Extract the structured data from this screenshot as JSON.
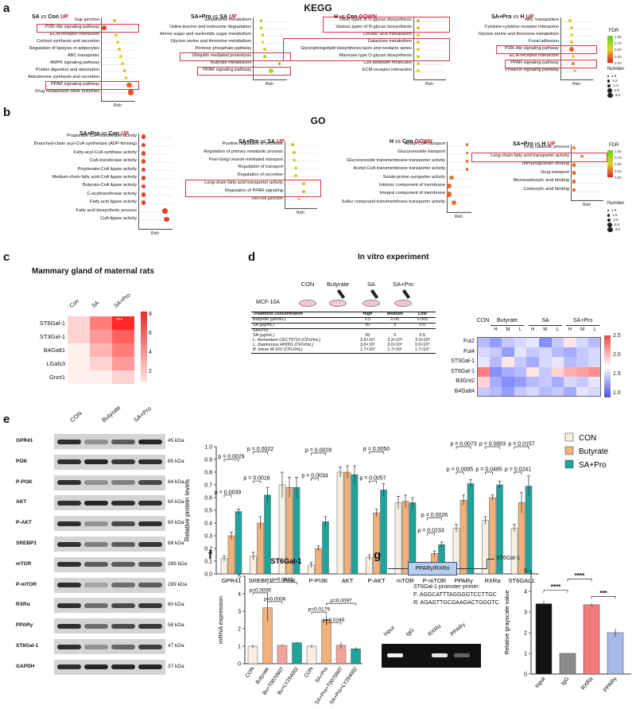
{
  "panels": {
    "a": {
      "letter": "a",
      "title": "KEGG",
      "rich_label": "Rich",
      "legend": {
        "fdr_label": "FDR",
        "fdr_ticks": [
          "1.00",
          "0.75",
          "0.50",
          "0.25",
          "0.00"
        ],
        "number_label": "Number",
        "number_ticks": [
          "1.0",
          "1.5",
          "2.0",
          "2.5",
          "3.0"
        ]
      },
      "plots": [
        {
          "title_a": "SA",
          "vs": "vs",
          "title_b": "Con",
          "dir": "UP",
          "terms": [
            "Gap junction",
            "PI3K-Akt signaling pathway",
            "ECM-receptor interaction",
            "Cortisol synthesis and secretion",
            "Regulation of lipolysis in adipocytes",
            "ABC transporter",
            "AMPK signaling pathway",
            "Protein digestion and absorption",
            "Aldosterone synthesis and secretion",
            "PPAR signaling pathway",
            "Drug metabolism-other enzymes"
          ]
        },
        {
          "title_a": "SA+Pro",
          "vs": "vs",
          "title_b": "SA",
          "dir": "UP",
          "terms": [
            "Glutathione metabolism",
            "Valine,leucine and isoleucine degradation",
            "Amino sugar and nucleotide sugar metabolism",
            "Glycine,serine and threonine metabolism",
            "Pentose phosphate pathway",
            "Ubiquitin mediated proteolysis",
            "Butyrate metabolism",
            "PPAR signaling pathway"
          ]
        },
        {
          "title_a": "H",
          "vs": "vs",
          "title_b": "Con",
          "dir": "DOWN",
          "terms": [
            "Other types of O-glycan biosynthesis",
            "Various types of N-glycan biosynthesis",
            "Linoleic acid metabolism",
            "Galactose metabolism",
            "Glycosphingolipid biosynthesis-lacto and neolacto series",
            "Mannose type O-glycan biosynthesis",
            "Cell adhesion molecules",
            "ECM-receptor interaction"
          ]
        },
        {
          "title_a": "SA+Pro",
          "vs": "vs",
          "title_b": "H",
          "dir": "UP",
          "terms": [
            "ABC transporters",
            "Cytokine-cytokine receptor interaction",
            "Glycine,serine and threonine metabolism",
            "Focal adhesion",
            "PI3K-Akt signaling pathway",
            "ECM-receptor interaction",
            "PPAR signaling pathway",
            "Prolactin signaling pathway"
          ]
        }
      ]
    },
    "b": {
      "letter": "b",
      "title": "GO",
      "rich_label": "Rich",
      "legend": {
        "fdr_label": "FDR",
        "fdr_ticks": [
          "1.00",
          "0.75",
          "0.50",
          "0.25",
          "0.00"
        ],
        "number_label": "Number",
        "number_ticks": [
          "1.0",
          "1.5",
          "2.0",
          "2.5",
          "3.0"
        ]
      },
      "plots": [
        {
          "title_a": "SA+Pro",
          "vs": "vs",
          "title_b": "Con",
          "dir": "UP",
          "terms": [
            "Propionate CoA-transferase activity",
            "Branched-chain acyl-CoA synthetase (ADP-forming)",
            "Fatty-acyl-CoA synthase activity",
            "CoA-transferase activity",
            "Propionate-CoA ligase activity",
            "Medium-chain fatty acid-CoA ligase activity",
            "Butyrate-CoA ligase activity",
            "C-acyltransferase activity",
            "Fatty acid ligase activity",
            "Fatty acid biosynthetic process",
            "CoA-ligase activity"
          ]
        },
        {
          "title_a": "SA+Pro",
          "vs": "vs",
          "title_b": "SA",
          "dir": "UP",
          "terms": [
            "Positive regulation of secretion",
            "Regulation of primary metabolic process",
            "Post-Golgi vesicle-mediated transport",
            "Regulation of transport",
            "Regulation of secretion",
            "Long-chain fatty acid transporter activity",
            "Regulation of PPAR signaling",
            "cell-cell junction"
          ]
        },
        {
          "title_a": "H",
          "vs": "vs",
          "title_b": "Con",
          "dir": "DOWN",
          "terms": [
            "Acetyl-CoA transport",
            "Glucuronoside transport",
            "Glucuronoside transmembrane transporter activity",
            "Acetyl-CoA transmembrane transporter activity",
            "Solute:proton symporter activity",
            "Intrinsic component of membrane",
            "Integral component of membrane",
            "Sulfur compound transmembrane transporter activity"
          ]
        },
        {
          "title_a": "SA+Pro",
          "vs": "vs",
          "title_b": "H",
          "dir": "UP",
          "terms": [
            "Drug catabolic process",
            "Long-chain fatty acid transporter activity",
            "Immunoglobulin binding",
            "Drug transport",
            "Monocarboxylic acid binding",
            "Carboxylic acid binding"
          ]
        }
      ]
    },
    "c": {
      "letter": "c",
      "title": "Mammary gland of maternal rats",
      "cols": [
        "Con",
        "SA",
        "SA+Pro"
      ],
      "rows": [
        "ST6Gal-1",
        "ST3Gal-1",
        "B4Galt1",
        "LGals3",
        "Gnct1"
      ],
      "star": "***",
      "scale_ticks": [
        "8",
        "6",
        "4",
        "2"
      ]
    },
    "d": {
      "letter": "d",
      "title": "In vitro experiment",
      "cell_line": "MCF-10A",
      "groups": [
        "CON",
        "Butyrate",
        "SA",
        "SA+Pro"
      ],
      "table": {
        "header": [
          "Treatment concentration",
          "High",
          "Medium",
          "Low"
        ],
        "rows": [
          [
            "Butyrate (μmol/L)",
            "0.5",
            "0.05",
            "0.005"
          ],
          [
            "SA (μg/mL)",
            "50",
            "5",
            "0.5"
          ],
          [
            "SA+Pro:",
            "",
            "",
            ""
          ],
          [
            "SA (μg/mL)",
            "50",
            "5",
            "0.5"
          ],
          [
            "L. fermentum CECT5716 (CFU/mL)",
            "3.3×10⁵",
            "3.3×10⁴",
            "3.3×10³"
          ],
          [
            "L. rhamnosus HN001 (CFU/mL)",
            "3.0×10⁵",
            "3.0×10⁵",
            "3.0×10⁴"
          ],
          [
            "B. breve M-16V (CFU/mL)",
            "1.7×10⁶",
            "1.7×10⁵",
            "1.7×10⁴"
          ]
        ]
      },
      "heat_cols_top": [
        "CON",
        "Butyrate",
        "SA",
        "SA+Pro"
      ],
      "heat_sub": [
        "H",
        "M",
        "L",
        "H",
        "M",
        "L",
        "H",
        "M",
        "L"
      ],
      "heat_rows": [
        "Fut2",
        "Fut4",
        "ST3Gal-1",
        "ST6Gal-1",
        "B3Gnt2",
        "B4Galt4"
      ],
      "scale_ticks": [
        "2.5",
        "2.0",
        "1.5",
        "1.0"
      ]
    },
    "e": {
      "letter": "e",
      "lanes": [
        "CON",
        "Butyrate",
        "SA+Pro"
      ],
      "blots": [
        {
          "name": "GPR41",
          "kda": "45 kDa"
        },
        {
          "name": "PI3K",
          "kda": "85 kDa"
        },
        {
          "name": "P-PI3K",
          "kda": "84 kDa"
        },
        {
          "name": "AKT",
          "kda": "60 kDa"
        },
        {
          "name": "P-AKT",
          "kda": "60 kDa"
        },
        {
          "name": "SREBP1",
          "kda": "68 kDa"
        },
        {
          "name": "mTOR",
          "kda": "289 kDa"
        },
        {
          "name": "P-mTOR",
          "kda": "289 kDa"
        },
        {
          "name": "RXRα",
          "kda": "60 kDa"
        },
        {
          "name": "PPARγ",
          "kda": "58 kDa"
        },
        {
          "name": "ST6Gal-1",
          "kda": "47 kDa"
        },
        {
          "name": "GAPDH",
          "kda": "37 kDa"
        }
      ]
    },
    "f": {
      "letter": "f"
    },
    "g": {
      "letter": "g",
      "construct": "PPARγ/RXRα",
      "gene": "ST6Gal-1",
      "primer_title": "ST6Gal-1 promoter primer:",
      "primer_f": "F:  AGGCATTTAGGGGTCCTTGC",
      "primer_r": "R:  AGAGTTGCGAAGACTGGGTC",
      "gel_lanes": [
        "Input",
        "IgG",
        "RXRα",
        "PPARγ"
      ]
    }
  },
  "chart_data": [
    {
      "type": "bar",
      "panel": "e",
      "ylabel": "Relative protein levels",
      "ylim": [
        0,
        1.0
      ],
      "yticks": [
        0.0,
        0.1,
        0.2,
        0.3,
        0.4,
        0.5,
        0.6,
        0.7,
        0.8,
        0.9,
        1.0
      ],
      "categories": [
        "GPR41",
        "SREBP1",
        "PI3K",
        "P-PI3K",
        "AKT",
        "P-AKT",
        "mTOR",
        "P-mTOR",
        "PPARγ",
        "RXRa",
        "ST6GAL1"
      ],
      "series": [
        {
          "name": "CON",
          "color": "#f8efe0",
          "values": [
            0.12,
            0.14,
            0.7,
            0.07,
            0.8,
            0.13,
            0.56,
            0.04,
            0.36,
            0.42,
            0.36
          ]
        },
        {
          "name": "Butyrate",
          "color": "#f0b17a",
          "values": [
            0.3,
            0.4,
            0.68,
            0.2,
            0.8,
            0.48,
            0.57,
            0.16,
            0.58,
            0.6,
            0.56
          ]
        },
        {
          "name": "SA+Pro",
          "color": "#1fa39a",
          "values": [
            0.49,
            0.62,
            0.68,
            0.41,
            0.78,
            0.66,
            0.56,
            0.23,
            0.71,
            0.7,
            0.69
          ]
        }
      ],
      "errors": [
        [
          0.02,
          0.03,
          0.1,
          0.02,
          0.04,
          0.02,
          0.05,
          0.005,
          0.03,
          0.03,
          0.03
        ],
        [
          0.03,
          0.05,
          0.08,
          0.02,
          0.05,
          0.03,
          0.05,
          0.02,
          0.04,
          0.02,
          0.08
        ],
        [
          0.02,
          0.06,
          0.08,
          0.04,
          0.07,
          0.05,
          0.04,
          0.02,
          0.03,
          0.03,
          0.08
        ]
      ],
      "annotations": [
        {
          "text": "p = 0.0029",
          "cat": 0,
          "from": 0,
          "to": 2,
          "level": 0.9
        },
        {
          "text": "p = 0.0039",
          "cat": 0,
          "from": 0,
          "to": 1,
          "level": 0.62
        },
        {
          "text": "p = 0.0022",
          "cat": 1,
          "from": 0,
          "to": 2,
          "level": 0.96
        },
        {
          "text": "p = 0.0016",
          "cat": 1,
          "from": 0,
          "to": 1,
          "level": 0.73
        },
        {
          "text": "p = 0.0028",
          "cat": 3,
          "from": 0,
          "to": 2,
          "level": 0.95
        },
        {
          "text": "p = 0.0034",
          "cat": 3,
          "from": 0,
          "to": 1,
          "level": 0.75
        },
        {
          "text": "p = 0.0050",
          "cat": 5,
          "from": 0,
          "to": 2,
          "level": 0.96
        },
        {
          "text": "p = 0.0057",
          "cat": 5,
          "from": 0,
          "to": 1,
          "level": 0.73
        },
        {
          "text": "p = 0.0026",
          "cat": 7,
          "from": 0,
          "to": 2,
          "level": 0.44
        },
        {
          "text": "p = 0.0233",
          "cat": 7,
          "from": 0,
          "to": 1,
          "level": 0.32
        },
        {
          "text": "p = 0.0073",
          "cat": 8,
          "from": 0,
          "to": 2,
          "level": 1.0
        },
        {
          "text": "p = 0.0095",
          "cat": 8,
          "from": 0,
          "to": 1,
          "level": 0.8
        },
        {
          "text": "p = 0.0003",
          "cat": 9,
          "from": 0,
          "to": 2,
          "level": 1.0
        },
        {
          "text": "p = 0.0485",
          "cat": 9,
          "from": 0,
          "to": 1,
          "level": 0.8
        },
        {
          "text": "p = 0.0157",
          "cat": 10,
          "from": 0,
          "to": 2,
          "level": 1.0
        },
        {
          "text": "p = 0.0241",
          "cat": 10,
          "from": 0,
          "to": 1,
          "level": 0.8
        }
      ]
    },
    {
      "type": "bar",
      "panel": "f",
      "title": "ST6Gal-1",
      "ylabel": "mRNA expression",
      "ylim": [
        0,
        5
      ],
      "yticks": [
        0,
        1,
        2,
        3,
        4,
        5
      ],
      "categories": [
        "CON",
        "Butyrate",
        "Bu+T0070907",
        "Bu+LY294002",
        "CON",
        "SA+Pro",
        "SA+Pro+T0070907",
        "SA+Pro+LY294002"
      ],
      "values": [
        1.0,
        3.2,
        1.05,
        1.2,
        1.0,
        2.5,
        1.05,
        0.85
      ],
      "errors": [
        0.1,
        0.8,
        0.05,
        0.05,
        0.1,
        0.3,
        0.2,
        0.1
      ],
      "colors": [
        "#f8efe0",
        "#f0b17a",
        "#f3a39b",
        "#1fa39a",
        "#f8efe0",
        "#f0b17a",
        "#f3a39b",
        "#1fa39a"
      ],
      "annotations": [
        {
          "text": "p=0.0012",
          "from": 1,
          "to": 3,
          "level": 4.65
        },
        {
          "text": "p=0.0005",
          "from": 0,
          "to": 1,
          "level": 4.05
        },
        {
          "text": "p=0.0006",
          "from": 1,
          "to": 2,
          "level": 3.55
        },
        {
          "text": "p=0.0097",
          "from": 5,
          "to": 7,
          "level": 3.45
        },
        {
          "text": "p=0.0179",
          "from": 4,
          "to": 5,
          "level": 2.95
        },
        {
          "text": "p=0.0245",
          "from": 5,
          "to": 6,
          "level": 2.35
        }
      ]
    },
    {
      "type": "bar",
      "panel": "g",
      "ylabel": "Relative grayscale value",
      "ylim": [
        0,
        5
      ],
      "yticks": [
        0,
        1,
        2,
        3,
        4,
        5
      ],
      "categories": [
        "Input",
        "IgG",
        "RXRα",
        "PPARγ"
      ],
      "values": [
        3.4,
        1.0,
        3.35,
        2.0
      ],
      "errors": [
        0.15,
        0.0,
        0.08,
        0.2
      ],
      "colors": [
        "#111111",
        "#8a8a8a",
        "#f07b7b",
        "#a8b8e8"
      ],
      "annotations": [
        {
          "text": "****",
          "from": 0,
          "to": 1,
          "level": 4.05
        },
        {
          "text": "****",
          "from": 1,
          "to": 2,
          "level": 4.6
        },
        {
          "text": "***",
          "from": 2,
          "to": 3,
          "level": 3.75
        }
      ]
    }
  ]
}
